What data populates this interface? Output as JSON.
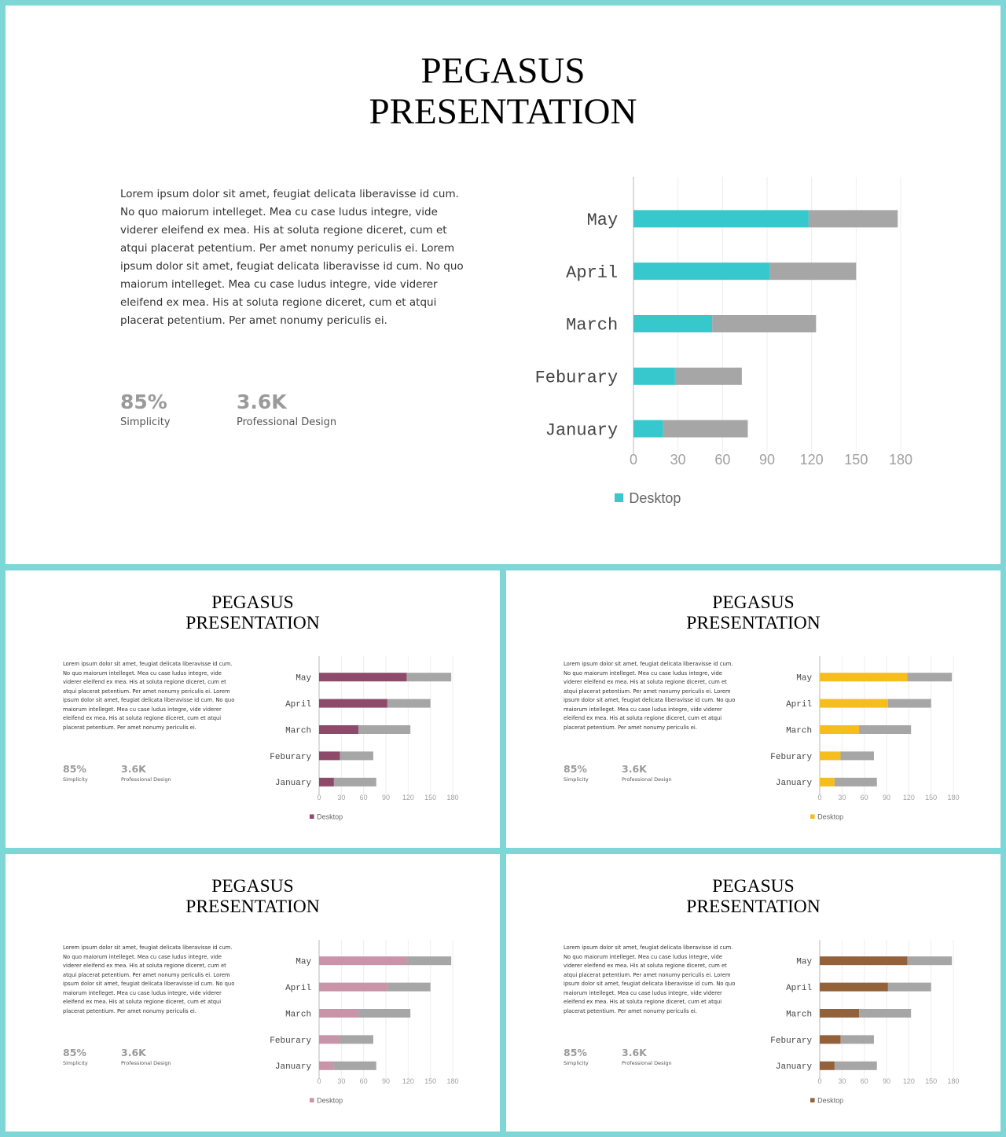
{
  "slides": [
    {
      "title_line1": "PEGASUS",
      "title_line2": "PRESENTATION",
      "body": "Lorem ipsum dolor sit amet, feugiat delicata liberavisse id cum. No quo maiorum intelleget. Mea cu case ludus integre, vide viderer eleifend ex mea. His at soluta regione diceret, cum et atqui placerat petentium. Per amet nonumy periculis ei. Lorem ipsum dolor sit amet, feugiat delicata liberavisse id cum. No quo maiorum intelleget. Mea cu case ludus integre, vide viderer eleifend ex mea. His at soluta regione diceret, cum et atqui placerat petentium. Per amet nonumy periculis ei.",
      "stats": [
        {
          "value": "85%",
          "label": "Simplicity"
        },
        {
          "value": "3.6K",
          "label": "Professional Design"
        }
      ],
      "accent": "#36c8cc"
    },
    {
      "title_line1": "PEGASUS",
      "title_line2": "PRESENTATION",
      "body": "Lorem ipsum dolor sit amet, feugiat delicata liberavisse id cum. No quo maiorum intelleget. Mea cu case ludus integre, vide viderer eleifend ex mea. His at soluta regione diceret, cum et atqui placerat petentium. Per amet nonumy periculis ei. Lorem ipsum dolor sit amet, feugiat delicata liberavisse id cum. No quo maiorum intelleget. Mea cu case ludus integre, vide viderer eleifend ex mea. His at soluta regione diceret, cum et atqui placerat petentium. Per amet nonumy periculis ei.",
      "stats": [
        {
          "value": "85%",
          "label": "Simplicity"
        },
        {
          "value": "3.6K",
          "label": "Professional Design"
        }
      ],
      "accent": "#8e4a6a"
    },
    {
      "title_line1": "PEGASUS",
      "title_line2": "PRESENTATION",
      "body": "Lorem ipsum dolor sit amet, feugiat delicata liberavisse id cum. No quo maiorum intelleget. Mea cu case ludus integre, vide viderer eleifend ex mea. His at soluta regione diceret, cum et atqui placerat petentium. Per amet nonumy periculis ei. Lorem ipsum dolor sit amet, feugiat delicata liberavisse id cum. No quo maiorum intelleget. Mea cu case ludus integre, vide viderer eleifend ex mea. His at soluta regione diceret, cum et atqui placerat petentium. Per amet nonumy periculis ei.",
      "stats": [
        {
          "value": "85%",
          "label": "Simplicity"
        },
        {
          "value": "3.6K",
          "label": "Professional Design"
        }
      ],
      "accent": "#f5be1e"
    },
    {
      "title_line1": "PEGASUS",
      "title_line2": "PRESENTATION",
      "body": "Lorem ipsum dolor sit amet, feugiat delicata liberavisse id cum. No quo maiorum intelleget. Mea cu case ludus integre, vide viderer eleifend ex mea. His at soluta regione diceret, cum et atqui placerat petentium. Per amet nonumy periculis ei. Lorem ipsum dolor sit amet, feugiat delicata liberavisse id cum. No quo maiorum intelleget. Mea cu case ludus integre, vide viderer eleifend ex mea. His at soluta regione diceret, cum et atqui placerat petentium. Per amet nonumy periculis ei.",
      "stats": [
        {
          "value": "85%",
          "label": "Simplicity"
        },
        {
          "value": "3.6K",
          "label": "Professional Design"
        }
      ],
      "accent": "#c993a8"
    },
    {
      "title_line1": "PEGASUS",
      "title_line2": "PRESENTATION",
      "body": "Lorem ipsum dolor sit amet, feugiat delicata liberavisse id cum. No quo maiorum intelleget. Mea cu case ludus integre, vide viderer eleifend ex mea. His at soluta regione diceret, cum et atqui placerat petentium. Per amet nonumy periculis ei. Lorem ipsum dolor sit amet, feugiat delicata liberavisse id cum. No quo maiorum intelleget. Mea cu case ludus integre, vide viderer eleifend ex mea. His at soluta regione diceret, cum et atqui placerat petentium. Per amet nonumy periculis ei.",
      "stats": [
        {
          "value": "85%",
          "label": "Simplicity"
        },
        {
          "value": "3.6K",
          "label": "Professional Design"
        }
      ],
      "accent": "#94623a"
    }
  ],
  "chart_data": {
    "type": "bar",
    "orientation": "horizontal",
    "stacked": true,
    "categories": [
      "May",
      "April",
      "March",
      "Feburary",
      "January"
    ],
    "series": [
      {
        "name": "Desktop",
        "values": [
          118,
          92,
          53,
          28,
          20
        ]
      },
      {
        "values": [
          60,
          58,
          70,
          45,
          57
        ]
      }
    ],
    "xlim": [
      0,
      180
    ],
    "xticks": [
      0,
      30,
      60,
      90,
      120,
      150,
      180
    ],
    "grid": true,
    "legend": "bottom",
    "colors": {
      "secondary": "#a6a6a6",
      "grid": "#eeeeee",
      "axis": "#d0d0d0"
    }
  }
}
